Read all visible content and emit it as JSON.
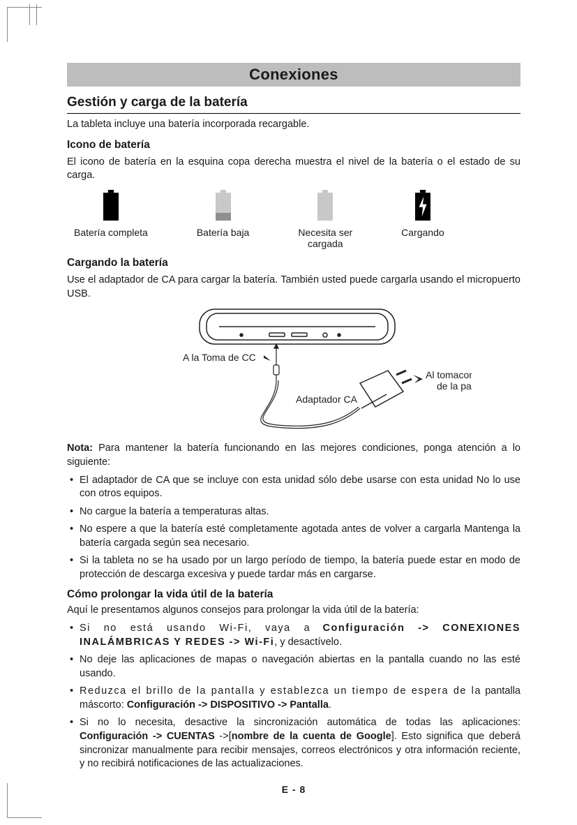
{
  "colors": {
    "band_bg": "#bdbdbd",
    "text": "#1a1a1a",
    "rule": "#000000",
    "batt_full": "#000000",
    "batt_low": "#8f8f8f",
    "batt_empty": "#c8c8c8",
    "bolt": "#ffffff",
    "diagram_stroke": "#222222"
  },
  "fonts": {
    "base_family": "Helvetica, Arial, sans-serif",
    "body_pt": 14.5,
    "band_pt": 22,
    "h2_pt": 19,
    "sub_pt": 15.5
  },
  "band_title": "Conexiones",
  "h2": "Gestión y carga de la batería",
  "intro": "La tableta incluye una batería incorporada recargable.",
  "icon_section": {
    "heading": "Icono de batería",
    "desc": "El icono de batería en la esquina copa derecha muestra el nivel de la batería o el estado de su carga.",
    "items": [
      {
        "label": "Batería completa",
        "type": "full"
      },
      {
        "label": "Batería baja",
        "type": "low"
      },
      {
        "label": "Necesita ser\ncargada",
        "type": "empty"
      },
      {
        "label": "Cargando",
        "type": "charging"
      }
    ]
  },
  "charging": {
    "heading": "Cargando la batería",
    "desc": "Use el adaptador de CA para cargar la batería. También usted puede cargarla usando el micropuerto USB.",
    "diagram": {
      "label_dc": "A la Toma de CC",
      "label_adapter": "Adaptador CA",
      "label_outlet": "Al tomacorriente de la pared"
    }
  },
  "note": {
    "lead": "Nota:",
    "lead_rest": " Para mantener la batería funcionando en las mejores condiciones, ponga atención a lo siguiente:",
    "bullets": [
      "El adaptador de CA que se incluye con esta unidad sólo debe usarse con esta unidad No lo use con otros equipos.",
      "No cargue la batería a temperaturas altas.",
      "No espere a que la batería esté completamente agotada antes de volver a cargarla Mantenga la batería cargada según sea necesario.",
      "Si la tableta no se ha usado por un largo período de tiempo, la batería puede estar en modo de protección de descarga excesiva y puede tardar más en cargarse."
    ]
  },
  "prolong": {
    "heading": "Cómo prolongar la vida útil de la batería",
    "intro": "Aquí le presentamos algunos consejos para prolongar la vida útil de la batería:",
    "bullets_html": [
      "<span class='ls'>Si no está usando Wi-Fi, vaya a</span> <span class='b ls'>Configuración -&gt; CONEXIONES INALÁMBRICAS Y REDES -&gt; Wi-Fi</span>, y desactívelo.",
      "No deje las aplicaciones de mapas o navegación abiertas en la pantalla cuando no las esté usando.",
      "<span class='ls'>Reduzca el brillo de la pantalla y establezca un tiempo de espera de la</span> pantalla máscorto: <span class='b'>Configuración -&gt; DISPOSITIVO -&gt; Pantalla</span>.",
      "Si no lo necesita, desactive la sincronización automática de todas las aplicaciones: <span class='b'>Configuración -&gt; CUENTAS</span> -&gt;[<span class='b'>nombre de la cuenta de Google</span>]. Esto significa que deberá sincronizar manualmente para recibir mensajes, correos electrónicos y otra información reciente, y no recibirá notificaciones de las actualizaciones."
    ]
  },
  "page_number": "E - 8"
}
